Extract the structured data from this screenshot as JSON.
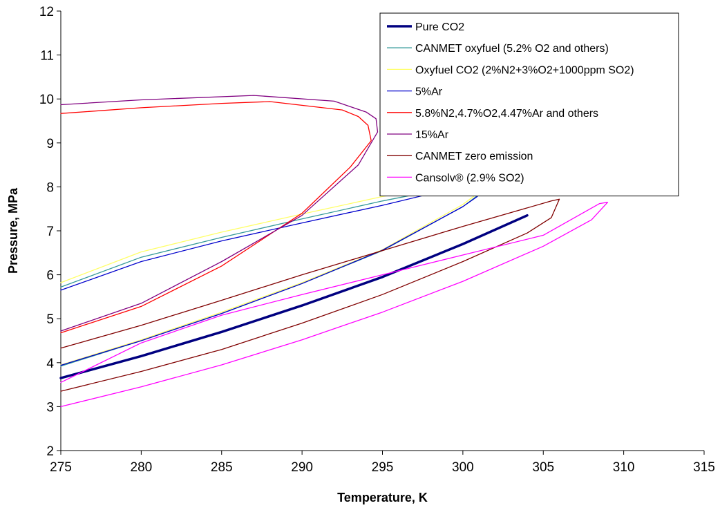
{
  "chart_data": {
    "type": "line",
    "xlabel": "Temperature, K",
    "ylabel": "Pressure, MPa",
    "xlim": [
      275,
      315
    ],
    "ylim": [
      2,
      12
    ],
    "xticks": [
      "275",
      "280",
      "285",
      "290",
      "295",
      "300",
      "305",
      "310",
      "315"
    ],
    "yticks": [
      "2",
      "3",
      "4",
      "5",
      "6",
      "7",
      "8",
      "9",
      "10",
      "11",
      "12"
    ],
    "grid": false,
    "legend_position": "top-right",
    "series": [
      {
        "name": "Pure CO2",
        "color": "#000080",
        "bold": true,
        "x": [
          275,
          280,
          285,
          290,
          295,
          300,
          304
        ],
        "y": [
          3.65,
          4.15,
          4.7,
          5.3,
          5.95,
          6.7,
          7.35
        ]
      },
      {
        "name": "CANMET oxyfuel (5.2% O2 and others)",
        "color": "#339999",
        "x": [
          275,
          280,
          285,
          290,
          295,
          300,
          300.9,
          301.2,
          300.9,
          300,
          295,
          290,
          285,
          280,
          275
        ],
        "y": [
          3.92,
          4.5,
          5.12,
          5.8,
          6.55,
          7.55,
          7.8,
          8.02,
          8.09,
          8.04,
          7.68,
          7.27,
          6.85,
          6.4,
          5.72
        ]
      },
      {
        "name": "Oxyfuel CO2 (2%N2+3%O2+1000ppm SO2)",
        "color": "#FFFF66",
        "x": [
          275,
          280,
          285,
          290,
          295,
          300,
          300.8,
          300.9,
          300.5,
          295,
          290,
          285,
          280,
          275
        ],
        "y": [
          3.95,
          4.52,
          5.15,
          5.82,
          6.57,
          7.6,
          7.82,
          8.02,
          8.1,
          7.78,
          7.38,
          6.97,
          6.52,
          5.82
        ]
      },
      {
        "name": "5%Ar",
        "color": "#0000CC",
        "x": [
          275,
          280,
          285,
          290,
          295,
          300,
          300.9,
          301,
          300.6,
          300,
          295,
          290,
          285,
          280,
          275
        ],
        "y": [
          3.94,
          4.5,
          5.12,
          5.8,
          6.56,
          7.55,
          7.78,
          7.98,
          8.05,
          8.02,
          7.58,
          7.18,
          6.77,
          6.3,
          5.65
        ]
      },
      {
        "name": "5.8%N2,4.7%O2,4.47%Ar and others",
        "color": "#FF0000",
        "x": [
          275,
          280,
          285,
          290,
          293,
          294.3,
          294.1,
          293.5,
          292.5,
          288,
          285,
          280,
          275
        ],
        "y": [
          4.68,
          5.28,
          6.2,
          7.4,
          8.45,
          9.05,
          9.4,
          9.6,
          9.75,
          9.94,
          9.9,
          9.8,
          9.67
        ]
      },
      {
        "name": "15%Ar",
        "color": "#800080",
        "x": [
          275,
          280,
          285,
          290,
          293.5,
          294.7,
          294.6,
          294,
          292,
          287,
          280,
          275
        ],
        "y": [
          4.72,
          5.35,
          6.3,
          7.35,
          8.5,
          9.25,
          9.55,
          9.7,
          9.95,
          10.08,
          9.98,
          9.87
        ]
      },
      {
        "name": "CANMET zero emission",
        "color": "#800000",
        "x": [
          275,
          280,
          285,
          290,
          295,
          300,
          304,
          305.5,
          306,
          305.5,
          300,
          295,
          290,
          285,
          280,
          275
        ],
        "y": [
          3.35,
          3.8,
          4.3,
          4.9,
          5.55,
          6.3,
          6.95,
          7.3,
          7.72,
          7.68,
          7.1,
          6.55,
          6.0,
          5.42,
          4.85,
          4.33
        ]
      },
      {
        "name": "Cansolv® (2.9% SO2)",
        "color": "#FF00FF",
        "x": [
          275,
          280,
          285,
          290,
          295,
          300,
          305,
          308,
          309,
          308.5,
          305,
          300,
          295,
          290,
          285,
          280,
          275
        ],
        "y": [
          3.0,
          3.45,
          3.95,
          4.52,
          5.15,
          5.85,
          6.65,
          7.25,
          7.65,
          7.62,
          6.9,
          6.45,
          6.0,
          5.55,
          5.08,
          4.45,
          3.55
        ]
      }
    ]
  }
}
